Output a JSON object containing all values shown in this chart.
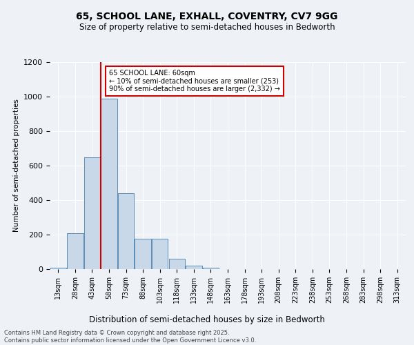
{
  "title1": "65, SCHOOL LANE, EXHALL, COVENTRY, CV7 9GG",
  "title2": "Size of property relative to semi-detached houses in Bedworth",
  "xlabel": "Distribution of semi-detached houses by size in Bedworth",
  "ylabel": "Number of semi-detached properties",
  "categories": [
    "13sqm",
    "28sqm",
    "43sqm",
    "58sqm",
    "73sqm",
    "88sqm",
    "103sqm",
    "118sqm",
    "133sqm",
    "148sqm",
    "163sqm",
    "178sqm",
    "193sqm",
    "208sqm",
    "223sqm",
    "238sqm",
    "253sqm",
    "268sqm",
    "283sqm",
    "298sqm",
    "313sqm"
  ],
  "values": [
    10,
    210,
    650,
    990,
    440,
    175,
    175,
    60,
    20,
    10,
    0,
    0,
    0,
    0,
    0,
    0,
    0,
    0,
    0,
    0,
    0
  ],
  "bar_color": "#c8d8e8",
  "bar_edge_color": "#5b8db8",
  "vline_color": "#cc0000",
  "vline_x": 2.5,
  "annotation_text": "65 SCHOOL LANE: 60sqm\n← 10% of semi-detached houses are smaller (253)\n90% of semi-detached houses are larger (2,332) →",
  "annotation_box_color": "#ffffff",
  "annotation_box_edge": "#cc0000",
  "ylim": [
    0,
    1200
  ],
  "yticks": [
    0,
    200,
    400,
    600,
    800,
    1000,
    1200
  ],
  "bg_color": "#eef2f7",
  "grid_color": "#ffffff",
  "footer1": "Contains HM Land Registry data © Crown copyright and database right 2025.",
  "footer2": "Contains public sector information licensed under the Open Government Licence v3.0."
}
